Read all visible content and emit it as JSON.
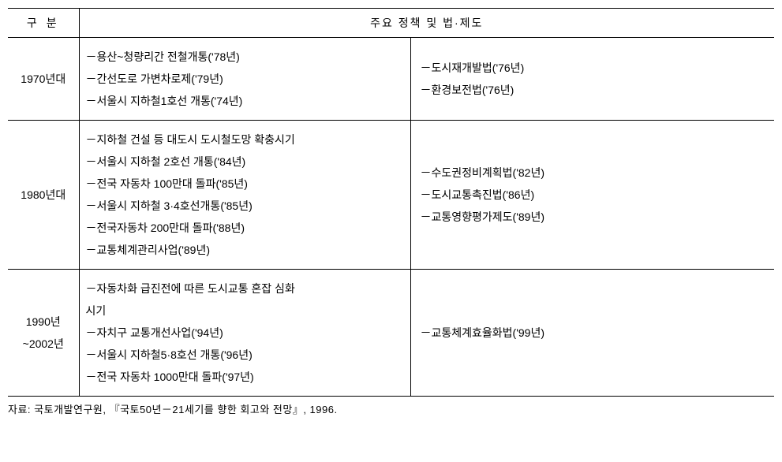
{
  "headers": {
    "category": "구 분",
    "policy": "주요 정책 및 법·제도"
  },
  "rows": [
    {
      "category": "1970년대",
      "left": [
        "－용산~청량리간 전철개통('78년)",
        "－간선도로 가변차로제('79년)",
        "－서울시 지하철1호선 개통('74년)"
      ],
      "right": [
        "－도시재개발법('76년)",
        "－환경보전법('76년)"
      ]
    },
    {
      "category": "1980년대",
      "left": [
        "－지하철 건설 등 대도시 도시철도망 확충시기",
        "－서울시 지하철 2호선 개통('84년)",
        "－전국 자동차 100만대 돌파('85년)",
        "－서울시 지하철 3·4호선개통('85년)",
        "－전국자동차 200만대 돌파('88년)",
        "－교통체계관리사업('89년)"
      ],
      "right": [
        "－수도권정비계획법('82년)",
        "－도시교통촉진법('86년)",
        "－교통영향평가제도('89년)"
      ]
    },
    {
      "category": "1990년\n~2002년",
      "left": [
        "－자동차화 급진전에 따른 도시교통 혼잡 심화",
        "  시기",
        "－자치구 교통개선사업('94년)",
        "－서울시 지하철5·8호선 개통('96년)",
        "－전국 자동차 1000만대 돌파('97년)"
      ],
      "right": [
        "－교통체계효율화법('99년)"
      ]
    }
  ],
  "source": "자료: 국토개발연구원, 『국토50년－21세기를 향한 회고와 전망』, 1996."
}
